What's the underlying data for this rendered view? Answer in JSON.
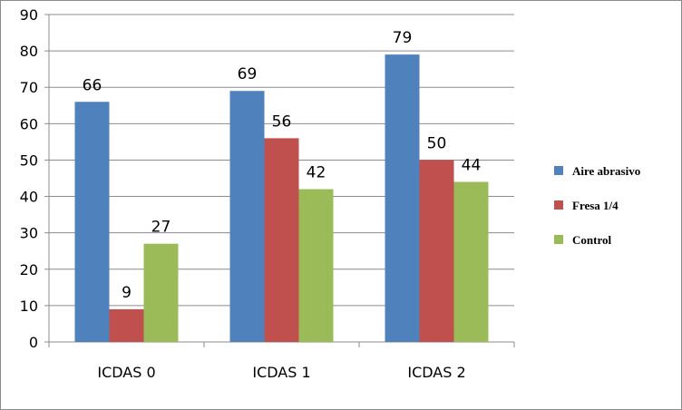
{
  "chart_data": {
    "type": "bar",
    "title": "",
    "xlabel": "",
    "ylabel": "",
    "categories": [
      "ICDAS 0",
      "ICDAS 1",
      "ICDAS 2"
    ],
    "series": [
      {
        "name": "Aire abrasivo",
        "color": "#4f81bd",
        "values": [
          66,
          69,
          79
        ]
      },
      {
        "name": "Fresa 1/4",
        "color": "#c0504d",
        "values": [
          9,
          56,
          50
        ]
      },
      {
        "name": "Control",
        "color": "#9bbb59",
        "values": [
          27,
          42,
          44
        ]
      }
    ],
    "ylim": [
      0,
      90
    ],
    "yticks": [
      0,
      10,
      20,
      30,
      40,
      50,
      60,
      70,
      80,
      90
    ],
    "grid": true,
    "data_labels": true,
    "legend_position": "right"
  }
}
